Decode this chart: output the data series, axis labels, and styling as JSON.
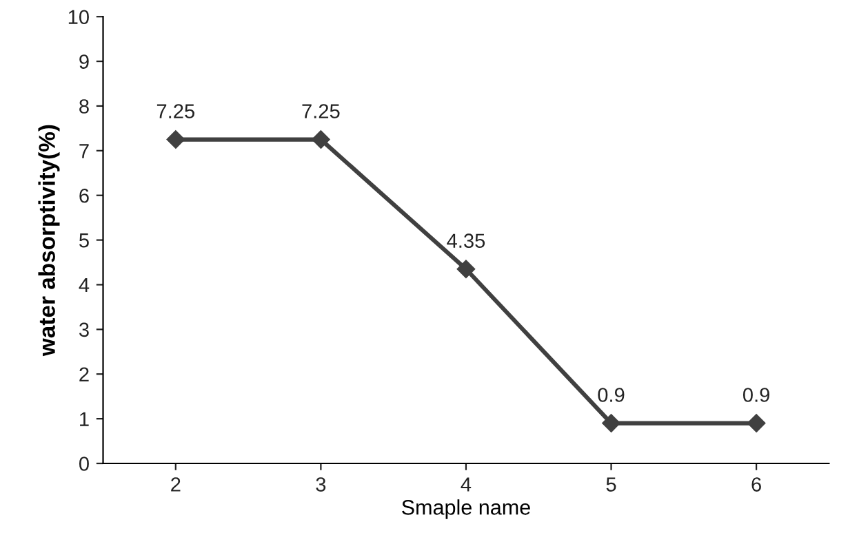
{
  "chart_data": {
    "type": "line",
    "xlabel": "Smaple name",
    "ylabel": "water absorptivity(%)",
    "categories": [
      "2",
      "3",
      "4",
      "5",
      "6"
    ],
    "series": [
      {
        "color": "#404040",
        "values": [
          7.25,
          7.25,
          4.35,
          0.9,
          0.9
        ]
      }
    ],
    "ylim": [
      0,
      10
    ],
    "yticks": [
      0,
      1,
      2,
      3,
      4,
      5,
      6,
      7,
      8,
      9,
      10
    ],
    "grid": false,
    "legend": false,
    "marker": "diamond",
    "line_style": "solid",
    "data_labels": true
  }
}
